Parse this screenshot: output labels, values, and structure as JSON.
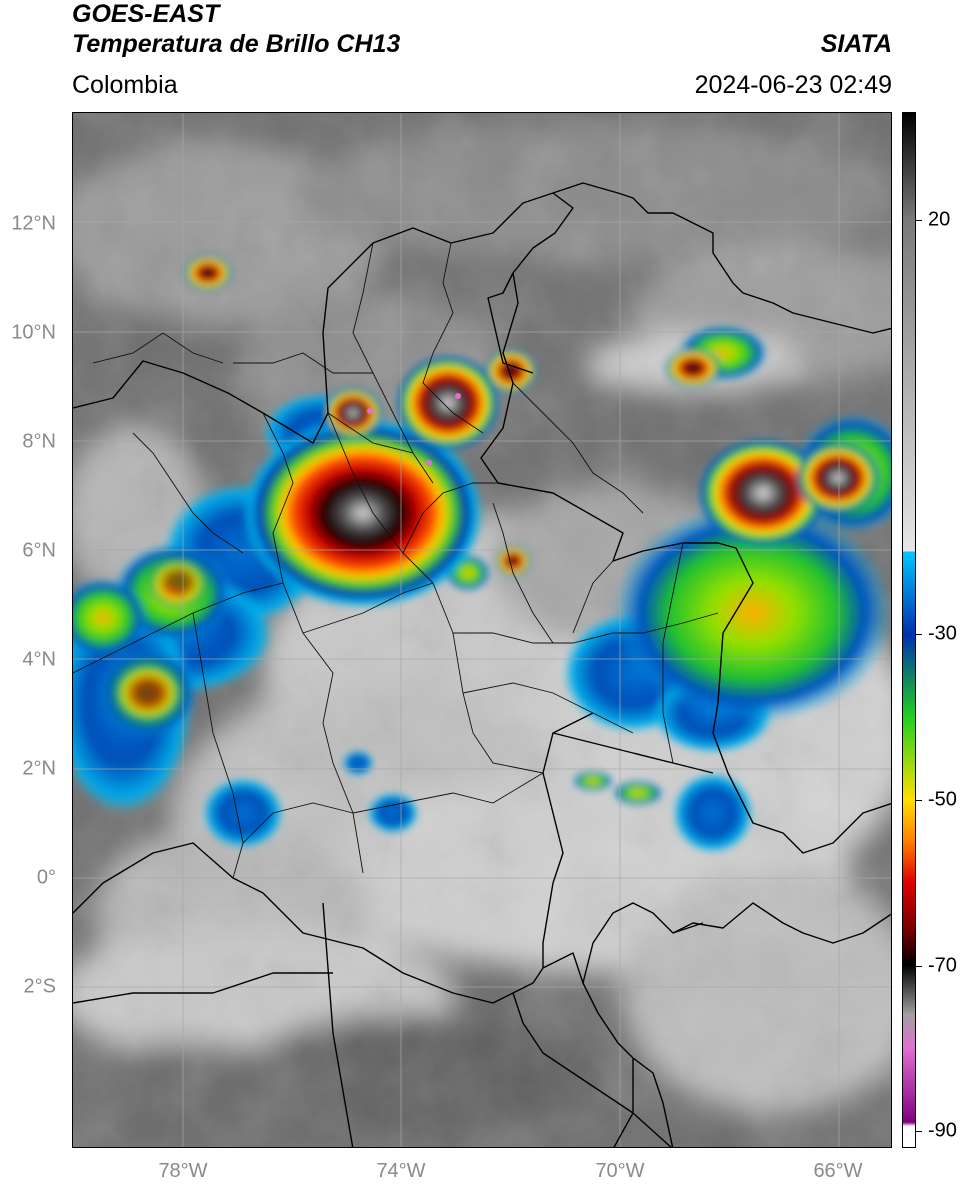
{
  "header": {
    "satellite": "GOES-EAST",
    "product": "Temperatura de Brillo CH13",
    "region": "Colombia",
    "organization": "SIATA",
    "timestamp": "2024-06-23 02:49"
  },
  "map": {
    "latitude_labels": [
      "12°N",
      "10°N",
      "8°N",
      "6°N",
      "4°N",
      "2°N",
      "0°",
      "2°S"
    ],
    "longitude_labels": [
      "78°W",
      "74°W",
      "70°W",
      "66°W"
    ],
    "extent": {
      "lon_min": -80,
      "lon_max": -65,
      "lat_min": -5,
      "lat_max": 14
    },
    "gridlines": true
  },
  "colorbar": {
    "unit": "°C",
    "range": [
      -92,
      33
    ],
    "tick_labels": [
      "20",
      "-30",
      "-50",
      "-70",
      "-90"
    ],
    "tick_values": [
      20,
      -30,
      -50,
      -70,
      -90
    ],
    "colors": {
      "warm_gray": "#7a7a7a",
      "cold_gray": "#e6e6e6",
      "cyan": "#00c8ff",
      "blue": "#0030b0",
      "green": "#20d020",
      "yellow": "#ffe000",
      "orange": "#ff8000",
      "red": "#e00000",
      "dark_red": "#700000",
      "black": "#000000",
      "pink": "#e070d0",
      "purple": "#800080"
    }
  }
}
